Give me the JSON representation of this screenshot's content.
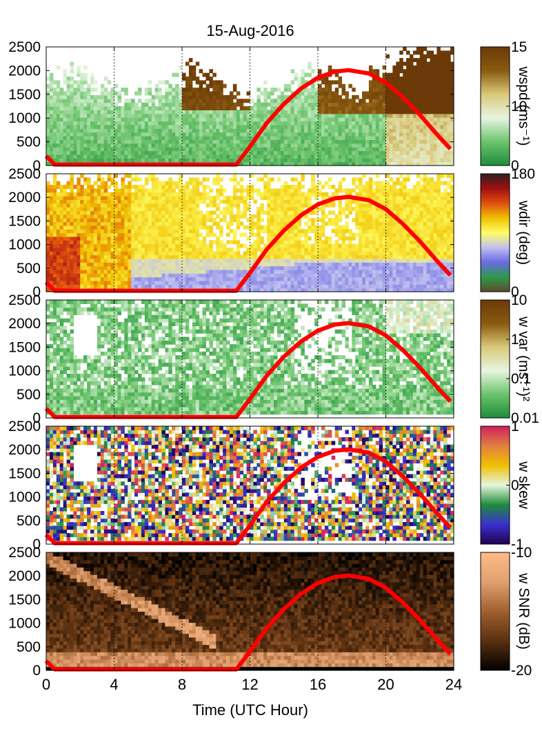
{
  "chart_data": {
    "type": "heatmap",
    "title": "15-Aug-2016",
    "xlabel": "Time (UTC Hour)",
    "xlim": [
      0,
      24
    ],
    "x_ticks": [
      0,
      4,
      8,
      12,
      16,
      20,
      24
    ],
    "x_tick_labels": [
      "0",
      "4",
      "8",
      "12",
      "16",
      "20",
      "24"
    ],
    "ylim": [
      0,
      2500
    ],
    "y_ticks": [
      0,
      500,
      1000,
      1500,
      2000,
      2500
    ],
    "y_tick_labels": [
      "0",
      "500",
      "1000",
      "1500",
      "2000",
      "2500"
    ],
    "grid": "vertical dotted lines at x ticks",
    "overlay_line": {
      "color": "#ff0000",
      "x": [
        0,
        0.5,
        11.2,
        12,
        13,
        14,
        15,
        16,
        17,
        17.8,
        19,
        20,
        21,
        22,
        23,
        23.8
      ],
      "y": [
        200,
        20,
        20,
        400,
        900,
        1300,
        1620,
        1850,
        1980,
        2010,
        1940,
        1750,
        1440,
        1070,
        660,
        350
      ]
    },
    "panels": [
      {
        "name": "wspd",
        "colorbar_label": "wspd (ms⁻¹)",
        "colorbar_ticks": [
          "0",
          "10",
          "15"
        ],
        "colorbar_colors": [
          "#1e8c3a",
          "#6cc46c",
          "#e6f5e0",
          "#d9c97a",
          "#8a5a10",
          "#6b3a08"
        ]
      },
      {
        "name": "wdir",
        "colorbar_label": "wdir (deg)",
        "colorbar_ticks": [
          "0",
          "180"
        ],
        "colorbar_colors": [
          "#5c4a2a",
          "#2e9a4a",
          "#6a6ae6",
          "#c0c0ee",
          "#ffff66",
          "#f0c000",
          "#e05010",
          "#a01010",
          "#302020"
        ]
      },
      {
        "name": "wvar",
        "colorbar_label": "w var (ms⁻¹)²",
        "colorbar_ticks": [
          "0.01",
          "0.1",
          "1",
          "10"
        ],
        "colorbar_colors": [
          "#1e8c3a",
          "#6cc46c",
          "#e6f5e0",
          "#d9c97a",
          "#8a5a10",
          "#6b3a08"
        ]
      },
      {
        "name": "wskew",
        "colorbar_label": "w skew",
        "colorbar_ticks": [
          "-1",
          "0",
          "1"
        ],
        "colorbar_colors": [
          "#200050",
          "#3a30d0",
          "#1e8c3a",
          "#e6f5e0",
          "#f0c000",
          "#e08040",
          "#d02060"
        ]
      },
      {
        "name": "wsnr",
        "colorbar_label": "w SNR (dB)",
        "colorbar_ticks": [
          "-20",
          "-10"
        ],
        "colorbar_colors": [
          "#000000",
          "#5a3010",
          "#a06030",
          "#e0a070",
          "#ffbb88"
        ]
      }
    ]
  }
}
